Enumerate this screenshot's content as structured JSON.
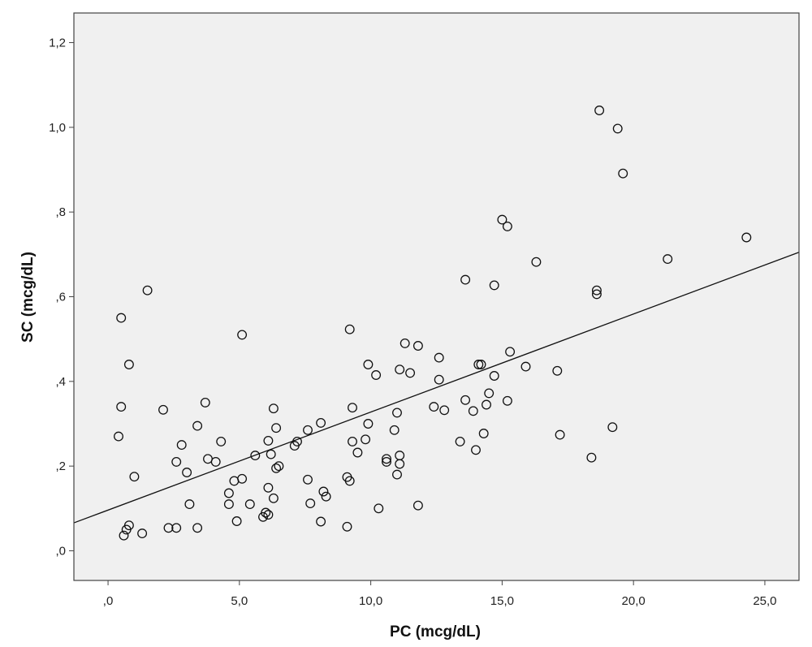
{
  "chart_data": {
    "type": "scatter",
    "xlabel": "PC (mcg/dL)",
    "ylabel": "SC (mcg/dL)",
    "xlim": [
      -1.3,
      26.3
    ],
    "ylim": [
      -0.07,
      1.27
    ],
    "x_ticks": [
      0,
      5,
      10,
      15,
      20,
      25
    ],
    "x_tick_labels": [
      ",0",
      "5,0",
      "10,0",
      "15,0",
      "20,0",
      "25,0"
    ],
    "y_ticks": [
      0,
      0.2,
      0.4,
      0.6,
      0.8,
      1.0,
      1.2
    ],
    "y_tick_labels": [
      ",0",
      ",2",
      ",4",
      ",6",
      ",8",
      "1,0",
      "1,2"
    ],
    "grid": false,
    "plot_background": "#f0f0f0",
    "marker": "open-circle",
    "fit_line": {
      "type": "linear",
      "x_start": -1.3,
      "y_start": 0.066,
      "x_end": 26.3,
      "y_end": 0.705
    },
    "points": [
      [
        0.5,
        0.55
      ],
      [
        1.5,
        0.615
      ],
      [
        0.8,
        0.44
      ],
      [
        0.5,
        0.34
      ],
      [
        0.4,
        0.27
      ],
      [
        1.0,
        0.175
      ],
      [
        0.8,
        0.06
      ],
      [
        0.7,
        0.05
      ],
      [
        0.6,
        0.036
      ],
      [
        1.3,
        0.041
      ],
      [
        2.1,
        0.333
      ],
      [
        2.8,
        0.25
      ],
      [
        2.6,
        0.21
      ],
      [
        3.0,
        0.185
      ],
      [
        3.1,
        0.11
      ],
      [
        2.3,
        0.054
      ],
      [
        2.6,
        0.054
      ],
      [
        3.4,
        0.295
      ],
      [
        3.7,
        0.35
      ],
      [
        3.8,
        0.217
      ],
      [
        4.1,
        0.21
      ],
      [
        4.3,
        0.258
      ],
      [
        3.4,
        0.054
      ],
      [
        4.6,
        0.136
      ],
      [
        4.6,
        0.11
      ],
      [
        4.8,
        0.165
      ],
      [
        5.1,
        0.17
      ],
      [
        4.9,
        0.07
      ],
      [
        5.1,
        0.51
      ],
      [
        5.4,
        0.11
      ],
      [
        5.6,
        0.225
      ],
      [
        6.1,
        0.26
      ],
      [
        6.2,
        0.228
      ],
      [
        6.3,
        0.336
      ],
      [
        6.4,
        0.29
      ],
      [
        6.5,
        0.2
      ],
      [
        6.4,
        0.195
      ],
      [
        6.1,
        0.149
      ],
      [
        6.3,
        0.124
      ],
      [
        6.0,
        0.09
      ],
      [
        5.9,
        0.08
      ],
      [
        6.1,
        0.085
      ],
      [
        7.1,
        0.248
      ],
      [
        7.2,
        0.258
      ],
      [
        7.6,
        0.285
      ],
      [
        8.1,
        0.302
      ],
      [
        7.6,
        0.168
      ],
      [
        7.7,
        0.112
      ],
      [
        8.2,
        0.14
      ],
      [
        8.3,
        0.128
      ],
      [
        8.1,
        0.069
      ],
      [
        9.2,
        0.523
      ],
      [
        9.1,
        0.174
      ],
      [
        9.2,
        0.165
      ],
      [
        9.1,
        0.057
      ],
      [
        9.3,
        0.338
      ],
      [
        9.3,
        0.258
      ],
      [
        9.5,
        0.232
      ],
      [
        9.8,
        0.263
      ],
      [
        9.9,
        0.3
      ],
      [
        9.9,
        0.44
      ],
      [
        10.2,
        0.415
      ],
      [
        10.3,
        0.1
      ],
      [
        10.6,
        0.217
      ],
      [
        10.6,
        0.21
      ],
      [
        10.9,
        0.285
      ],
      [
        11.0,
        0.326
      ],
      [
        11.0,
        0.18
      ],
      [
        11.1,
        0.225
      ],
      [
        11.1,
        0.205
      ],
      [
        11.1,
        0.428
      ],
      [
        11.3,
        0.49
      ],
      [
        11.5,
        0.42
      ],
      [
        11.8,
        0.484
      ],
      [
        11.8,
        0.107
      ],
      [
        12.4,
        0.34
      ],
      [
        12.6,
        0.456
      ],
      [
        12.6,
        0.404
      ],
      [
        12.8,
        0.332
      ],
      [
        13.4,
        0.258
      ],
      [
        13.6,
        0.64
      ],
      [
        13.6,
        0.356
      ],
      [
        13.9,
        0.33
      ],
      [
        14.0,
        0.238
      ],
      [
        14.1,
        0.44
      ],
      [
        14.2,
        0.44
      ],
      [
        14.3,
        0.277
      ],
      [
        14.4,
        0.345
      ],
      [
        14.5,
        0.372
      ],
      [
        14.7,
        0.627
      ],
      [
        14.7,
        0.413
      ],
      [
        15.0,
        0.782
      ],
      [
        15.2,
        0.766
      ],
      [
        15.2,
        0.354
      ],
      [
        15.3,
        0.47
      ],
      [
        15.9,
        0.435
      ],
      [
        16.3,
        0.682
      ],
      [
        17.1,
        0.425
      ],
      [
        17.2,
        0.274
      ],
      [
        18.4,
        0.22
      ],
      [
        18.6,
        0.615
      ],
      [
        18.6,
        0.606
      ],
      [
        18.7,
        1.04
      ],
      [
        19.2,
        0.292
      ],
      [
        19.4,
        0.997
      ],
      [
        19.6,
        0.891
      ],
      [
        21.3,
        0.689
      ],
      [
        24.3,
        0.74
      ]
    ]
  }
}
